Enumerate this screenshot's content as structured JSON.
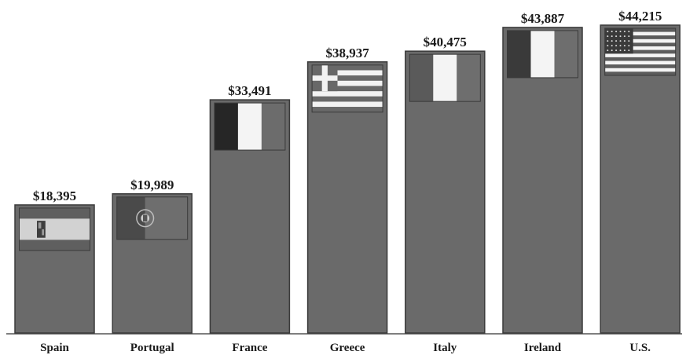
{
  "chart_data": {
    "type": "bar",
    "title": "",
    "xlabel": "",
    "ylabel": "",
    "ylim": [
      0,
      45000
    ],
    "grid": false,
    "legend": "none",
    "categories": [
      "Spain",
      "Portugal",
      "France",
      "Greece",
      "Italy",
      "Ireland",
      "U.S."
    ],
    "values": [
      18395,
      19989,
      33491,
      38937,
      40475,
      43887,
      44215
    ],
    "value_labels": [
      "$18,395",
      "$19,989",
      "$33,491",
      "$38,937",
      "$40,475",
      "$43,887",
      "$44,215"
    ],
    "flag_icons": [
      "spain-flag-icon",
      "portugal-flag-icon",
      "france-flag-icon",
      "greece-flag-icon",
      "italy-flag-icon",
      "ireland-flag-icon",
      "us-flag-icon"
    ]
  },
  "colors": {
    "bar": "#6a6a6a",
    "bar_edge": "#3a3a3a",
    "axis": "#555555",
    "text": "#1a1a1a"
  }
}
